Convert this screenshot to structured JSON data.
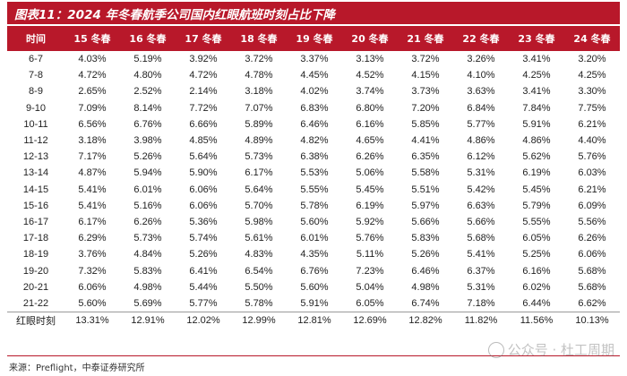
{
  "title": "图表11：2024 年冬春航季公司国内红眼航班时刻占比下降",
  "headers": [
    "时间",
    "15 冬春",
    "16 冬春",
    "17 冬春",
    "18 冬春",
    "19 冬春",
    "20 冬春",
    "21 冬春",
    "22 冬春",
    "23 冬春",
    "24 冬春"
  ],
  "rows": [
    [
      "6-7",
      "4.03%",
      "5.19%",
      "3.92%",
      "3.72%",
      "3.37%",
      "3.13%",
      "3.72%",
      "3.26%",
      "3.41%",
      "3.20%"
    ],
    [
      "7-8",
      "4.72%",
      "4.80%",
      "4.72%",
      "4.78%",
      "4.45%",
      "4.52%",
      "4.15%",
      "4.10%",
      "4.25%",
      "4.25%"
    ],
    [
      "8-9",
      "2.65%",
      "2.52%",
      "2.14%",
      "3.18%",
      "4.02%",
      "3.74%",
      "3.73%",
      "3.63%",
      "3.41%",
      "3.30%"
    ],
    [
      "9-10",
      "7.09%",
      "8.14%",
      "7.72%",
      "7.07%",
      "6.83%",
      "6.80%",
      "7.20%",
      "6.84%",
      "7.84%",
      "7.75%"
    ],
    [
      "10-11",
      "6.56%",
      "6.76%",
      "6.66%",
      "5.89%",
      "6.46%",
      "6.16%",
      "5.85%",
      "5.77%",
      "5.91%",
      "6.21%"
    ],
    [
      "11-12",
      "3.18%",
      "3.98%",
      "4.85%",
      "4.89%",
      "4.82%",
      "4.65%",
      "4.41%",
      "4.86%",
      "4.86%",
      "4.40%"
    ],
    [
      "12-13",
      "7.17%",
      "5.26%",
      "5.64%",
      "5.73%",
      "6.38%",
      "6.26%",
      "6.35%",
      "6.12%",
      "5.62%",
      "5.76%"
    ],
    [
      "13-14",
      "4.87%",
      "5.94%",
      "5.90%",
      "6.17%",
      "5.53%",
      "5.06%",
      "5.58%",
      "5.31%",
      "6.19%",
      "6.03%"
    ],
    [
      "14-15",
      "5.41%",
      "6.01%",
      "6.06%",
      "5.64%",
      "5.55%",
      "5.45%",
      "5.51%",
      "5.42%",
      "5.45%",
      "6.21%"
    ],
    [
      "15-16",
      "5.41%",
      "5.16%",
      "6.06%",
      "5.70%",
      "5.78%",
      "6.19%",
      "5.97%",
      "6.63%",
      "5.79%",
      "6.09%"
    ],
    [
      "16-17",
      "6.17%",
      "6.26%",
      "5.36%",
      "5.98%",
      "5.60%",
      "5.92%",
      "5.66%",
      "5.66%",
      "5.55%",
      "5.56%"
    ],
    [
      "17-18",
      "6.29%",
      "5.73%",
      "5.74%",
      "5.61%",
      "6.01%",
      "5.76%",
      "5.83%",
      "5.68%",
      "6.05%",
      "6.26%"
    ],
    [
      "18-19",
      "3.76%",
      "4.84%",
      "5.26%",
      "4.83%",
      "4.35%",
      "5.11%",
      "5.26%",
      "5.41%",
      "5.25%",
      "6.06%"
    ],
    [
      "19-20",
      "7.32%",
      "5.83%",
      "6.41%",
      "6.54%",
      "6.76%",
      "7.23%",
      "6.46%",
      "6.37%",
      "6.16%",
      "5.68%"
    ],
    [
      "20-21",
      "6.06%",
      "4.98%",
      "5.44%",
      "5.50%",
      "5.60%",
      "5.04%",
      "4.98%",
      "5.31%",
      "6.02%",
      "5.68%"
    ],
    [
      "21-22",
      "5.60%",
      "5.69%",
      "5.77%",
      "5.78%",
      "5.91%",
      "6.05%",
      "6.74%",
      "7.18%",
      "6.44%",
      "6.62%"
    ]
  ],
  "total": [
    "红眼时刻",
    "13.31%",
    "12.91%",
    "12.02%",
    "12.99%",
    "12.81%",
    "12.69%",
    "12.82%",
    "11.82%",
    "11.56%",
    "10.13%"
  ],
  "source": "来源：Preflight，中泰证券研究所",
  "watermark": "公众号 · 杜工周期",
  "colors": {
    "accent": "#b8182a"
  }
}
